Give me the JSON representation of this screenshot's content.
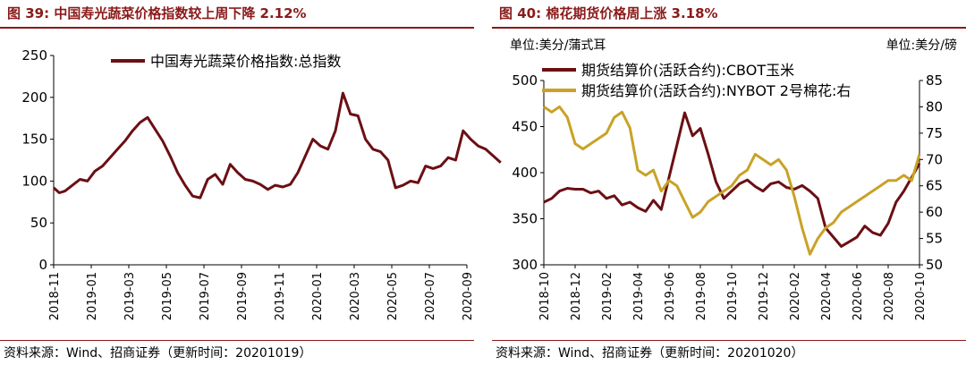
{
  "left": {
    "title": "图 39:  中国寿光蔬菜价格指数较上周下降 2.12%",
    "source": "资料来源：Wind、招商证券（更新时间：20201019）",
    "chart_data": {
      "type": "line",
      "title": "",
      "xlabel": "",
      "ylabel": "",
      "ylim": [
        0,
        250
      ],
      "yticks": [
        0,
        50,
        100,
        150,
        200,
        250
      ],
      "xticks": [
        "2018-11",
        "2019-01",
        "2019-03",
        "2019-05",
        "2019-07",
        "2019-09",
        "2019-11",
        "2020-01",
        "2020-03",
        "2020-05",
        "2020-07",
        "2020-09"
      ],
      "legend_position": "top",
      "series": [
        {
          "name": "中国寿光蔬菜价格指数:总指数",
          "color": "#6b0f14",
          "x": [
            0,
            0.3,
            0.6,
            1.0,
            1.4,
            1.8,
            2.2,
            2.6,
            3.0,
            3.4,
            3.8,
            4.2,
            4.6,
            5.0,
            5.4,
            5.8,
            6.2,
            6.6,
            7.0,
            7.4,
            7.8,
            8.2,
            8.6,
            9.0,
            9.4,
            9.8,
            10.2,
            10.6,
            11.0,
            11.4,
            11.8,
            12.2,
            12.6,
            13.0,
            13.4,
            13.8,
            14.2,
            14.6,
            15.0,
            15.4,
            15.8,
            16.2,
            16.6,
            17.0,
            17.4,
            17.8,
            18.2,
            18.6,
            19.0,
            19.4,
            19.8,
            20.2,
            20.6,
            21.0,
            21.4,
            21.8,
            22.2,
            22.6,
            23.0,
            23.4,
            23.8
          ],
          "y": [
            92,
            86,
            88,
            95,
            102,
            100,
            112,
            118,
            128,
            138,
            148,
            160,
            170,
            176,
            162,
            148,
            130,
            110,
            95,
            82,
            80,
            102,
            108,
            96,
            120,
            110,
            102,
            100,
            96,
            90,
            95,
            93,
            96,
            110,
            130,
            150,
            142,
            138,
            160,
            205,
            180,
            178,
            150,
            138,
            135,
            125,
            92,
            95,
            100,
            98,
            118,
            115,
            118,
            128,
            125,
            160,
            150,
            142,
            138,
            130,
            122
          ]
        }
      ]
    }
  },
  "right": {
    "title": "图 40:  棉花期货价格周上涨 3.18%",
    "source": "资料来源：Wind、招商证券（更新时间：20201020）",
    "unit_left": "单位:美分/蒲式耳",
    "unit_right": "单位:美分/磅",
    "chart_data": {
      "type": "line",
      "title": "",
      "xlabel": "",
      "ylabel": "",
      "ylim": [
        300,
        500
      ],
      "y2lim": [
        50,
        85
      ],
      "yticks": [
        300,
        350,
        400,
        450,
        500
      ],
      "y2ticks": [
        50,
        55,
        60,
        65,
        70,
        75,
        80,
        85
      ],
      "xticks": [
        "2018-10",
        "2018-12",
        "2019-02",
        "2019-04",
        "2019-06",
        "2019-08",
        "2019-10",
        "2019-12",
        "2020-02",
        "2020-04",
        "2020-06",
        "2020-08",
        "2020-10"
      ],
      "legend_position": "top",
      "series": [
        {
          "name": "期货结算价(活跃合约):CBOT玉米",
          "color": "#6b0f14",
          "axis": "left",
          "x": [
            0,
            0.5,
            1.0,
            1.5,
            2.0,
            2.5,
            3.0,
            3.5,
            4.0,
            4.5,
            5.0,
            5.5,
            6.0,
            6.5,
            7.0,
            7.5,
            8.0,
            8.5,
            9.0,
            9.5,
            10.0,
            10.5,
            11.0,
            11.5,
            12.0,
            12.5,
            13.0,
            13.5,
            14.0,
            14.5,
            15.0,
            15.5,
            16.0,
            16.5,
            17.0,
            17.5,
            18.0,
            18.5,
            19.0,
            19.5,
            20.0,
            20.5,
            21.0,
            21.5,
            22.0,
            22.5,
            23.0,
            23.5,
            24.0
          ],
          "y": [
            368,
            372,
            380,
            383,
            382,
            382,
            378,
            380,
            372,
            375,
            365,
            368,
            362,
            358,
            370,
            360,
            395,
            430,
            465,
            440,
            448,
            420,
            390,
            372,
            380,
            388,
            392,
            385,
            380,
            388,
            390,
            384,
            382,
            386,
            380,
            372,
            340,
            330,
            320,
            325,
            330,
            342,
            335,
            332,
            345,
            368,
            380,
            395,
            410
          ]
        },
        {
          "name": "期货结算价(活跃合约):NYBOT 2号棉花:右",
          "color": "#c9a227",
          "axis": "right",
          "x": [
            0,
            0.5,
            1.0,
            1.5,
            2.0,
            2.5,
            3.0,
            3.5,
            4.0,
            4.5,
            5.0,
            5.5,
            6.0,
            6.5,
            7.0,
            7.5,
            8.0,
            8.5,
            9.0,
            9.5,
            10.0,
            10.5,
            11.0,
            11.5,
            12.0,
            12.5,
            13.0,
            13.5,
            14.0,
            14.5,
            15.0,
            15.5,
            16.0,
            16.5,
            17.0,
            17.5,
            18.0,
            18.5,
            19.0,
            19.5,
            20.0,
            20.5,
            21.0,
            21.5,
            22.0,
            22.5,
            23.0,
            23.5,
            24.0
          ],
          "y": [
            80,
            79,
            80,
            78,
            73,
            72,
            73,
            74,
            75,
            78,
            79,
            76,
            68,
            67,
            68,
            64,
            66,
            65,
            62,
            59,
            60,
            62,
            63,
            64,
            65,
            67,
            68,
            71,
            70,
            69,
            70,
            68,
            63,
            57,
            52,
            55,
            57,
            58,
            60,
            61,
            62,
            63,
            64,
            65,
            66,
            66,
            67,
            66,
            71
          ]
        }
      ]
    }
  }
}
